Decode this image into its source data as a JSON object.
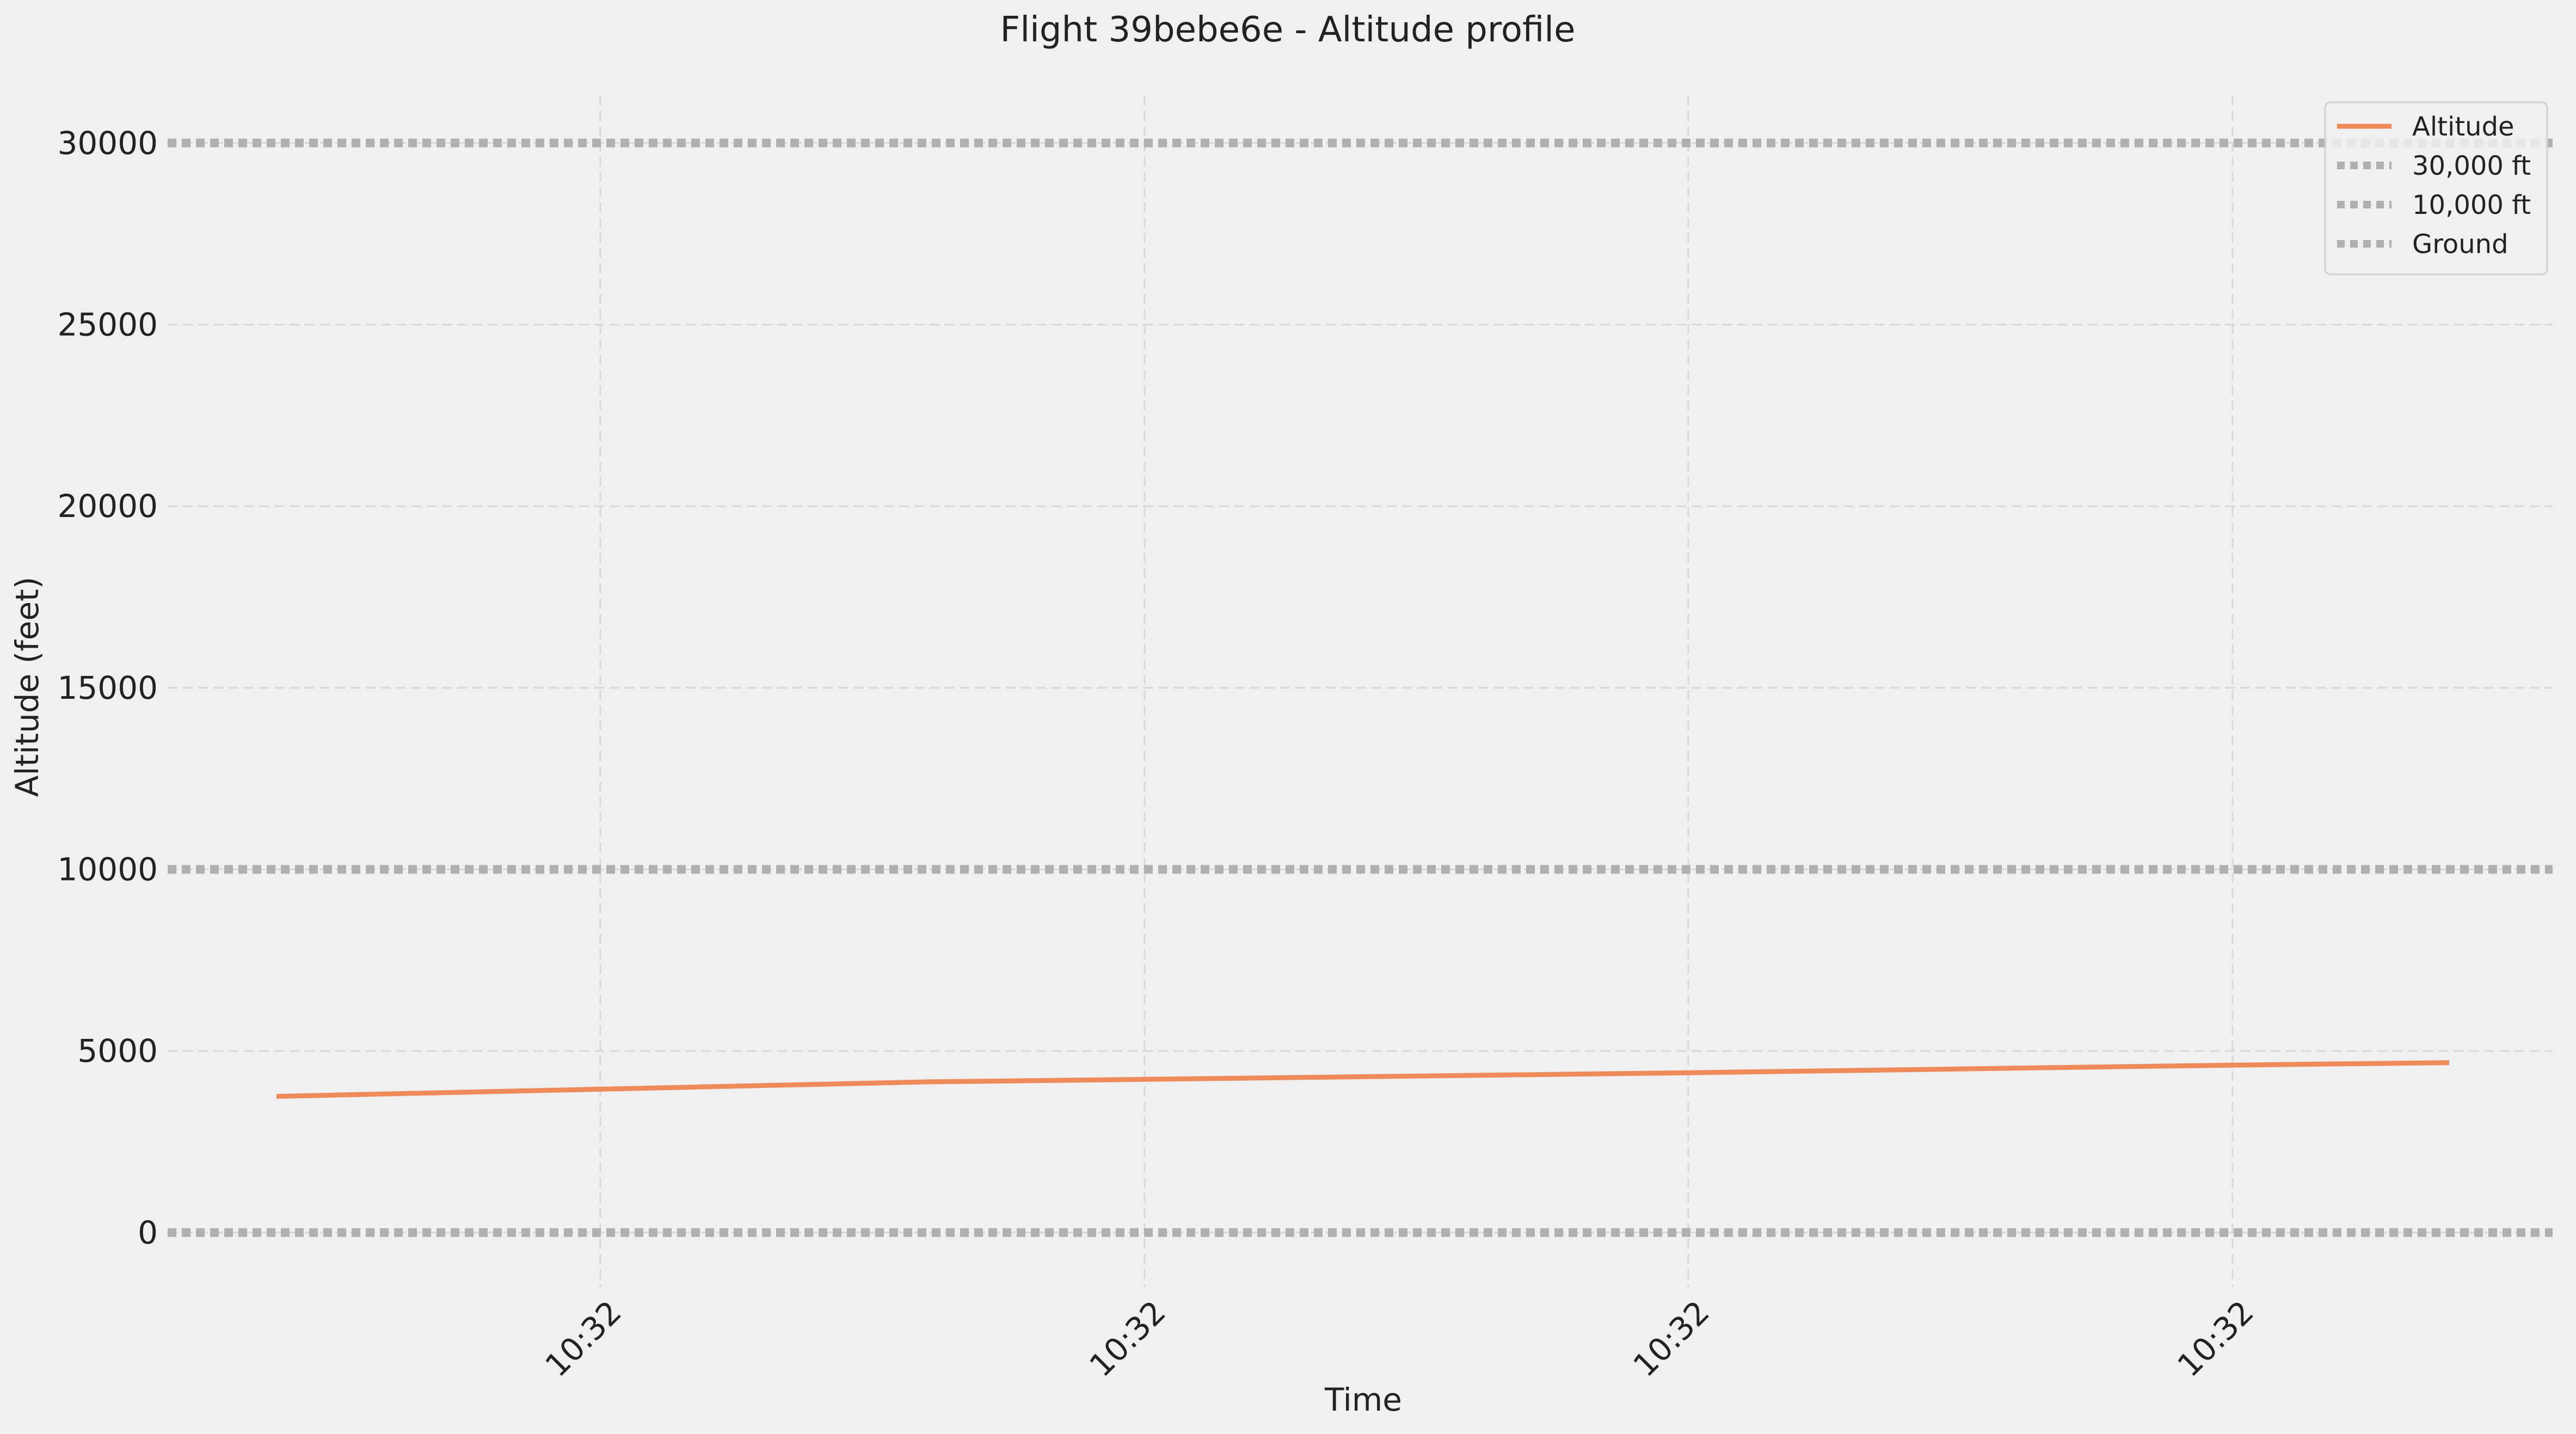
{
  "chart_data": {
    "type": "line",
    "title": "Flight 39bebe6e - Altitude profile",
    "xlabel": "Time",
    "ylabel": "Altitude (feet)",
    "x_tick_labels": [
      "10:32",
      "10:32",
      "10:32",
      "10:32"
    ],
    "y_ticks": [
      0,
      5000,
      10000,
      15000,
      20000,
      25000,
      30000
    ],
    "ylim": [
      -1500,
      31300
    ],
    "grid": true,
    "legend_position": "top-right",
    "series": [
      {
        "name": "Altitude",
        "color": "#ef8a5a",
        "style": "solid",
        "points": [
          {
            "t": -0.6,
            "y": 3750
          },
          {
            "t": 0.0,
            "y": 3950
          },
          {
            "t": 0.6,
            "y": 4150
          },
          {
            "t": 1.0,
            "y": 4220
          },
          {
            "t": 2.0,
            "y": 4400
          },
          {
            "t": 3.0,
            "y": 4610
          },
          {
            "t": 3.4,
            "y": 4680
          }
        ]
      }
    ],
    "reference_lines": [
      {
        "name": "30,000 ft",
        "value": 30000,
        "color": "#b0b0b0",
        "style": "dotted"
      },
      {
        "name": "10,000 ft",
        "value": 10000,
        "color": "#b0b0b0",
        "style": "dotted"
      },
      {
        "name": "Ground",
        "value": 0,
        "color": "#b0b0b0",
        "style": "dotted"
      }
    ]
  }
}
